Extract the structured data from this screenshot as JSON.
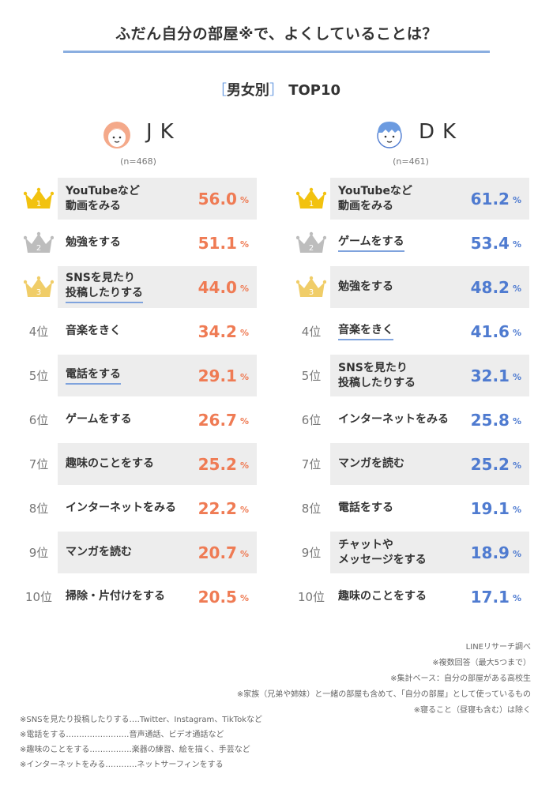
{
  "title": "ふだん自分の部屋※で、よくしていることは？",
  "subtitle": {
    "open": "［",
    "text": "男女別",
    "close": "］",
    "suffix": "TOP10"
  },
  "left": {
    "label": "JK",
    "n": "(n=468)"
  },
  "right": {
    "label": "DK",
    "n": "(n=461)"
  },
  "pct_unit": "%",
  "colors": {
    "jk": "#ef7b54",
    "dk": "#4f7bd0",
    "line": "#8aaee0",
    "gold": "#f2c20f",
    "silver": "#bdbdbd",
    "bronze": "#f0cd68"
  },
  "chart_data": [
    {
      "type": "table",
      "group": "JK",
      "ranks": [
        "1",
        "2",
        "3",
        "4位",
        "5位",
        "6位",
        "7位",
        "8位",
        "9位",
        "10位"
      ],
      "items": [
        "YouTubeなど\n動画をみる",
        "勉強をする",
        "SNSを見たり\n投稿したりする",
        "音楽をきく",
        "電話をする",
        "ゲームをする",
        "趣味のことをする",
        "インターネットをみる",
        "マンガを読む",
        "掃除・片付けをする"
      ],
      "values": [
        "56.0",
        "51.1",
        "44.0",
        "34.2",
        "29.1",
        "26.7",
        "25.2",
        "22.2",
        "20.7",
        "20.5"
      ],
      "underlined": [
        false,
        false,
        true,
        false,
        true,
        false,
        false,
        false,
        false,
        false
      ]
    },
    {
      "type": "table",
      "group": "DK",
      "ranks": [
        "1",
        "2",
        "3",
        "4位",
        "5位",
        "6位",
        "7位",
        "8位",
        "9位",
        "10位"
      ],
      "items": [
        "YouTubeなど\n動画をみる",
        "ゲームをする",
        "勉強をする",
        "音楽をきく",
        "SNSを見たり\n投稿したりする",
        "インターネットをみる",
        "マンガを読む",
        "電話をする",
        "チャットや\nメッセージをする",
        "趣味のことをする"
      ],
      "values": [
        "61.2",
        "53.4",
        "48.2",
        "41.6",
        "32.1",
        "25.8",
        "25.2",
        "19.1",
        "18.9",
        "17.1"
      ],
      "underlined": [
        false,
        true,
        false,
        true,
        false,
        false,
        false,
        false,
        false,
        false
      ]
    }
  ],
  "notes_right": [
    "LINEリサーチ調べ",
    "※複数回答（最大5つまで）",
    "※集計ベース：自分の部屋がある高校生",
    "※家族（兄弟や姉妹）と一緒の部屋も含めて、「自分の部屋」として使っているもの",
    "※寝ること（昼寝も含む）は除く"
  ],
  "notes_left": [
    "※SNSを見たり投稿したりする‥‥Twitter、Instagram、TikTokなど",
    "※電話をする‥‥‥‥‥‥‥‥‥‥‥‥音声通話、ビデオ通話など",
    "※趣味のことをする‥‥‥‥‥‥‥‥楽器の練習、絵を描く、手芸など",
    "※インターネットをみる‥‥‥‥‥‥ネットサーフィンをする"
  ]
}
